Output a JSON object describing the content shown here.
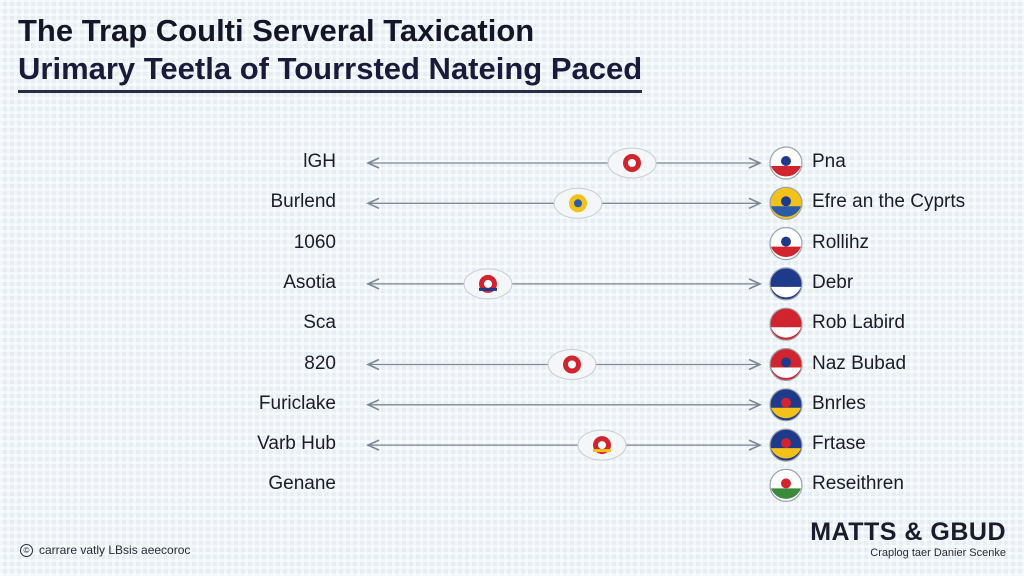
{
  "title": {
    "line1": "The Trap Coulti Serveral Taxication",
    "line2": "Urimary Teetla of Tourrsted Nateing Paced"
  },
  "rows": [
    {
      "left": "lGH",
      "right": "Pna",
      "connector": true,
      "node_icon": "round-badge-icon",
      "node_colors": [
        "#ffffff",
        "#d0252e"
      ],
      "flag_icon": "circle-flag-icon",
      "flag_colors": [
        "#ffffff",
        "#d0252e",
        "#1f3a8a"
      ]
    },
    {
      "left": "Burlend",
      "right": "Efre an the Cyprts",
      "connector": true,
      "node_icon": "cross-flag-icon",
      "node_colors": [
        "#2a5aa8",
        "#f2c21b"
      ],
      "flag_icon": "circle-flag-icon",
      "flag_colors": [
        "#f2c21b",
        "#2a5aa8",
        "#1f3a8a"
      ]
    },
    {
      "left": "1060",
      "right": "Rollihz",
      "connector": false,
      "node_icon": "",
      "node_colors": [],
      "flag_icon": "union-flag-icon",
      "flag_colors": [
        "#ffffff",
        "#d0252e",
        "#1f3a8a"
      ]
    },
    {
      "left": "Asotia",
      "right": "Debr",
      "connector": true,
      "node_icon": "oval-badge-icon",
      "node_colors": [
        "#ffffff",
        "#d0252e",
        "#1f3a8a"
      ],
      "flag_icon": "cross-flag-icon",
      "flag_colors": [
        "#1f3a8a",
        "#ffffff",
        "#1f3a8a"
      ]
    },
    {
      "left": "Sca",
      "right": "Rob Labird",
      "connector": false,
      "node_icon": "",
      "node_colors": [],
      "flag_icon": "star-flag-icon",
      "flag_colors": [
        "#d0252e",
        "#ffffff",
        "#d0252e"
      ]
    },
    {
      "left": "820",
      "right": "Naz Bubad",
      "connector": true,
      "node_icon": "sun-disc-icon",
      "node_colors": [
        "#ffffff",
        "#d0252e"
      ],
      "flag_icon": "circle-flag-icon",
      "flag_colors": [
        "#d0252e",
        "#ffffff",
        "#1f3a8a"
      ]
    },
    {
      "left": "Furiclake",
      "right": "Bnrles",
      "connector": true,
      "node_icon": "",
      "node_colors": [],
      "flag_icon": "shield-flag-icon",
      "flag_colors": [
        "#1f3a8a",
        "#f2c21b",
        "#d0252e"
      ]
    },
    {
      "left": "Varb Hub",
      "right": "Frtase",
      "connector": true,
      "node_icon": "striped-disc-icon",
      "node_colors": [
        "#ffffff",
        "#d0252e",
        "#f2c21b"
      ],
      "flag_icon": "tricolor-flag-icon",
      "flag_colors": [
        "#1f3a8a",
        "#f2c21b",
        "#d0252e"
      ]
    },
    {
      "left": "Genane",
      "right": "Reseithren",
      "connector": false,
      "node_icon": "",
      "node_colors": [],
      "flag_icon": "emblem-flag-icon",
      "flag_colors": [
        "#ffffff",
        "#3a8a3a",
        "#d0252e"
      ]
    }
  ],
  "brand": {
    "name": "MATTS & GBUD",
    "tagline": "Craplog taer Danier Scenke"
  },
  "footer": {
    "icon": "copyright-icon",
    "text": "carrare vatly LBsis aeecoroc"
  },
  "colors": {
    "connector": "#7c8794",
    "ink": "#1c1c28"
  }
}
